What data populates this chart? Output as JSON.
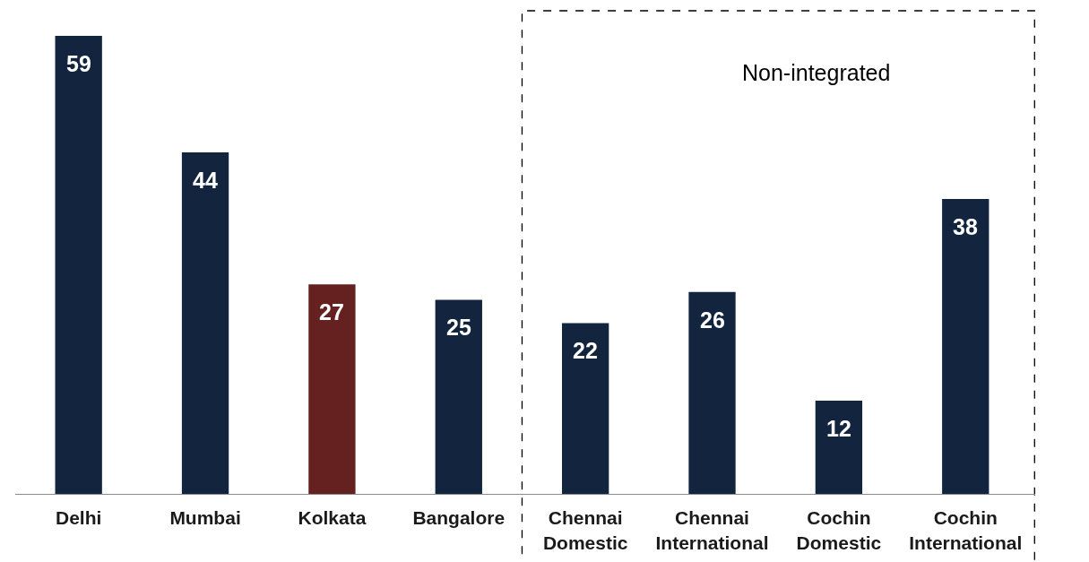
{
  "chart_data": {
    "type": "bar",
    "categories": [
      "Delhi",
      "Mumbai",
      "Kolkata",
      "Bangalore",
      "Chennai Domestic",
      "Chennai International",
      "Cochin Domestic",
      "Cochin International"
    ],
    "values": [
      59,
      44,
      27,
      25,
      22,
      26,
      12,
      38
    ],
    "colors": [
      "#13243f",
      "#13243f",
      "#65211f",
      "#13243f",
      "#13243f",
      "#13243f",
      "#13243f",
      "#13243f"
    ],
    "data_labels": true,
    "bands": [
      {
        "axis": "x",
        "from": "Chennai Domestic",
        "to": "Cochin International",
        "label": "Non-integrated",
        "color": "#ffffff"
      }
    ],
    "tick_labels": "x"
  }
}
